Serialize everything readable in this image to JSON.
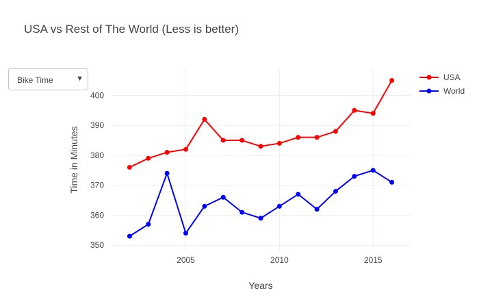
{
  "chart_data": {
    "type": "line",
    "title": "USA vs Rest of The World (Less is better)",
    "xlabel": "Years",
    "ylabel": "Time in Minutes",
    "x": [
      2002,
      2003,
      2004,
      2005,
      2006,
      2007,
      2008,
      2009,
      2010,
      2011,
      2012,
      2013,
      2014,
      2015,
      2016
    ],
    "xlim": [
      2001,
      2017
    ],
    "ylim": [
      348,
      409
    ],
    "xticks": [
      2005,
      2010,
      2015
    ],
    "yticks": [
      350,
      360,
      370,
      380,
      390,
      400
    ],
    "grid": true,
    "legend_position": "top-right",
    "series": [
      {
        "name": "USA",
        "color": "#ff0000",
        "values": [
          376,
          379,
          381,
          382,
          392,
          385,
          385,
          383,
          384,
          386,
          386,
          388,
          395,
          394,
          405
        ]
      },
      {
        "name": "World",
        "color": "#0000ff",
        "values": [
          353,
          357,
          374,
          354,
          363,
          366,
          361,
          359,
          363,
          367,
          362,
          368,
          373,
          375,
          371
        ]
      }
    ]
  },
  "controls": {
    "dropdown": {
      "selected": "Bike Time",
      "arrow_icon": "triangle-down-icon"
    }
  }
}
